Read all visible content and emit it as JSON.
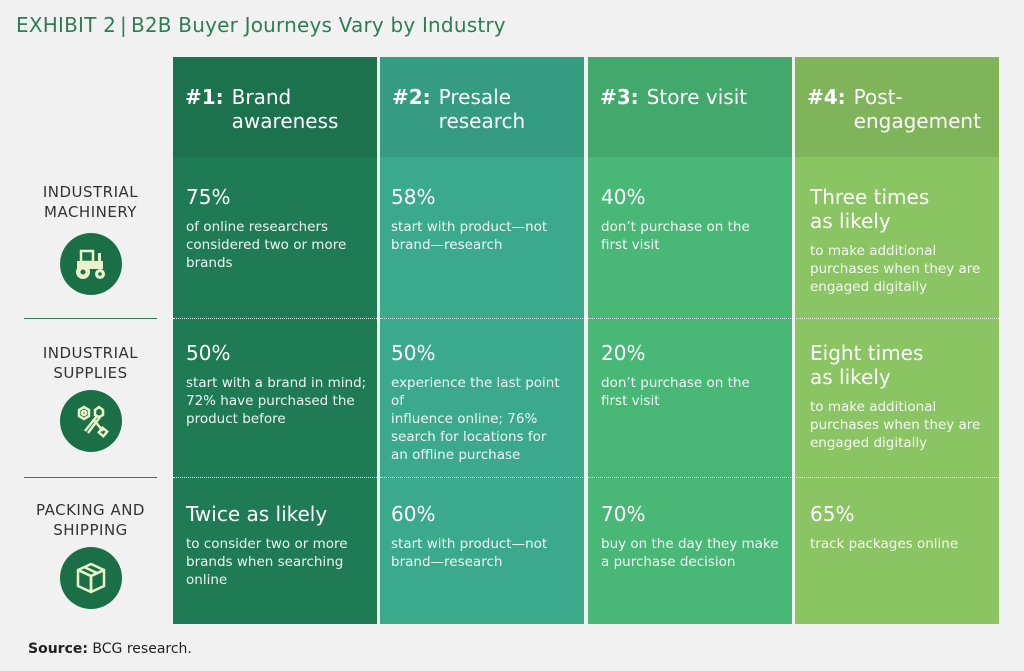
{
  "title": {
    "exhibit": "EXHIBIT 2",
    "separator": "|",
    "text": "B2B Buyer Journeys Vary by Industry"
  },
  "columns": [
    {
      "num": "#1:",
      "label": "Brand\nawareness",
      "color": "#1f7b55"
    },
    {
      "num": "#2:",
      "label": "Presale\nresearch",
      "color": "#3aaa8a"
    },
    {
      "num": "#3:",
      "label": "Store visit",
      "color": "#49b775"
    },
    {
      "num": "#4:",
      "label": "Post-\nengagement",
      "color": "#8ac463"
    }
  ],
  "rows": [
    {
      "label": "INDUSTRIAL\nMACHINERY",
      "icon": "tractor-icon",
      "cells": [
        {
          "big": "75%",
          "small": "of online researchers\nconsidered two or more\nbrands"
        },
        {
          "big": "58%",
          "small": "start with product—not\nbrand—research"
        },
        {
          "big": "40%",
          "small": "don’t purchase on the\nfirst visit"
        },
        {
          "big": "Three times\nas likely",
          "small": "to make additional\npurchases when they are\nengaged digitally"
        }
      ]
    },
    {
      "label": "INDUSTRIAL\nSUPPLIES",
      "icon": "bolt-nut-icon",
      "cells": [
        {
          "big": "50%",
          "small": "start with a brand in mind;\n72% have purchased the\nproduct before"
        },
        {
          "big": "50%",
          "small": "experience the last point of\ninfluence online; 76%\nsearch for locations for\nan offline purchase"
        },
        {
          "big": "20%",
          "small": "don’t purchase on the\nfirst visit"
        },
        {
          "big": "Eight times\nas likely",
          "small": "to make additional\npurchases when they are\nengaged digitally"
        }
      ]
    },
    {
      "label": "PACKING AND\nSHIPPING",
      "icon": "package-box-icon",
      "cells": [
        {
          "big": "Twice as likely",
          "small": "to consider two or more\nbrands when searching\nonline"
        },
        {
          "big": "60%",
          "small": "start with product—not\nbrand—research"
        },
        {
          "big": "70%",
          "small": "buy on the day they make\na purchase decision"
        },
        {
          "big": "65%",
          "small": "track packages online"
        }
      ]
    }
  ],
  "source": {
    "label": "Source:",
    "text": "BCG research."
  }
}
